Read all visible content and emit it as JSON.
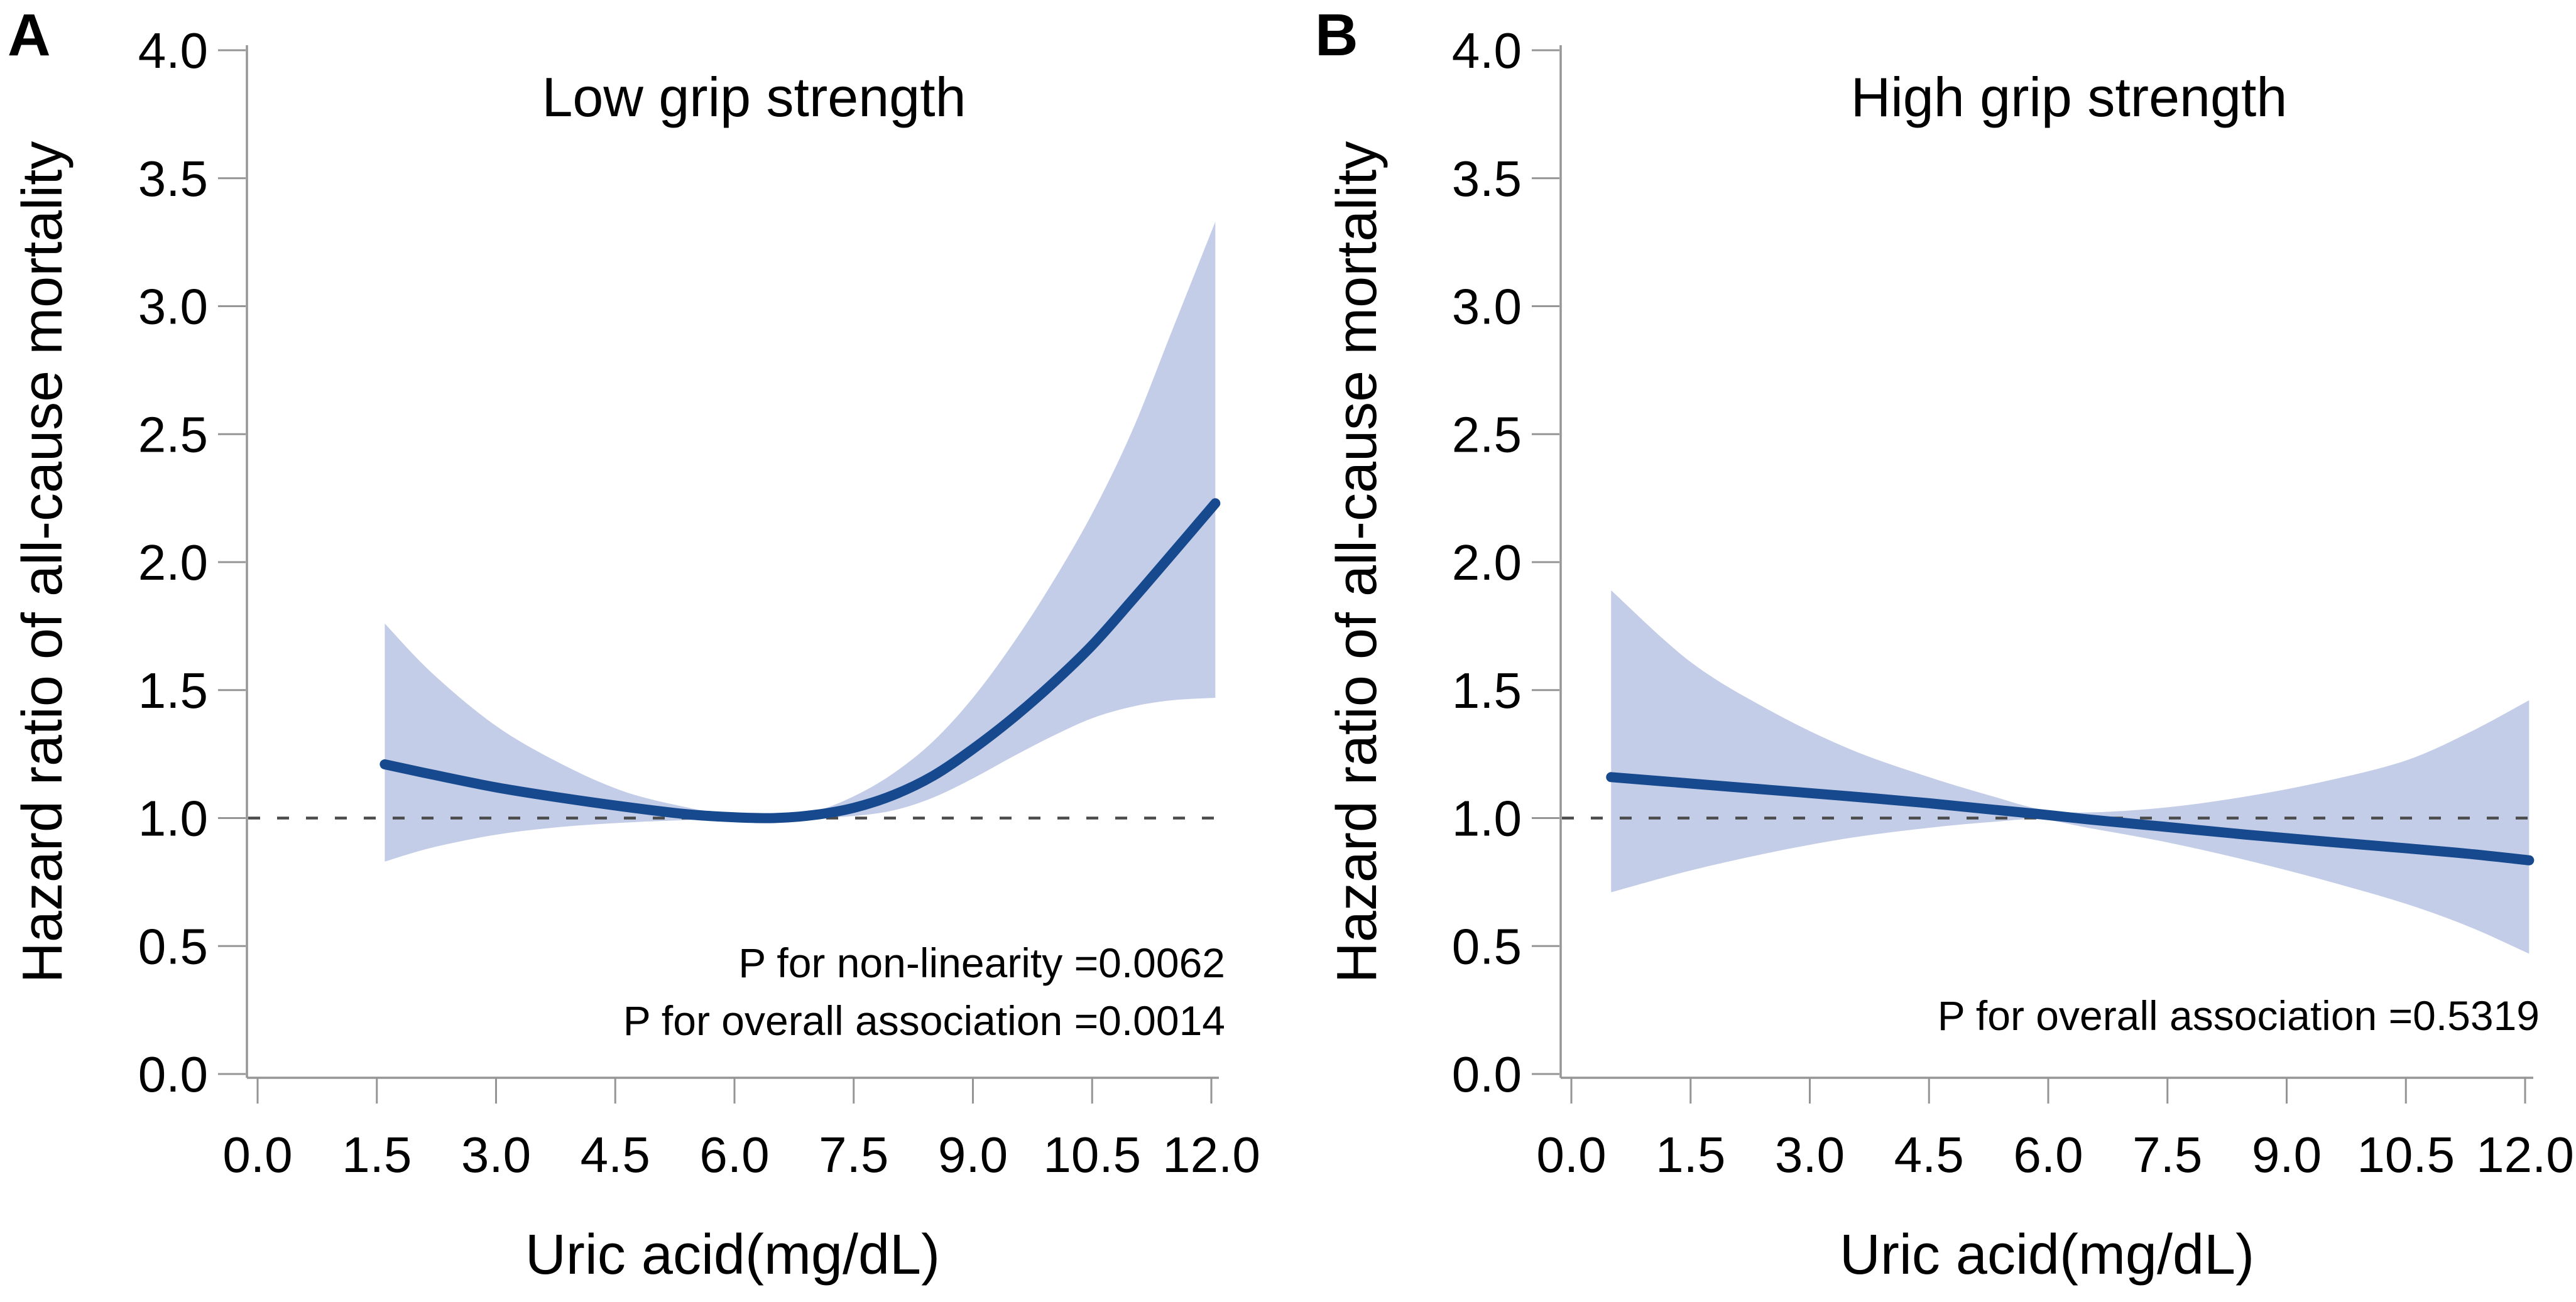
{
  "colors": {
    "curve_line": "#17498f",
    "ci_band": "#c4cde7",
    "reference_line": "#4a4a4a",
    "axis": "#959595",
    "text": "#000000"
  },
  "chart_data": [
    {
      "type": "line",
      "panel_label": "A",
      "title": "Low grip strength",
      "xlabel": "Uric acid(mg/dL)",
      "ylabel": "Hazard ratio of all-cause mortality",
      "xlim": [
        0,
        12.3
      ],
      "ylim": [
        0.0,
        4.0
      ],
      "grid": false,
      "legend": "none",
      "x_tick_labels": [
        "0.0",
        "1.5",
        "3.0",
        "4.5",
        "6.0",
        "7.5",
        "9.0",
        "10.5",
        "12.0"
      ],
      "x_tick_values": [
        0,
        1.5,
        3,
        4.5,
        6,
        7.5,
        9,
        10.5,
        12
      ],
      "y_tick_labels": [
        "0.0",
        "0.5",
        "1.0",
        "1.5",
        "2.0",
        "2.5",
        "3.0",
        "3.5",
        "4.0"
      ],
      "y_tick_values": [
        0,
        0.5,
        1,
        1.5,
        2,
        2.5,
        3,
        3.5,
        4
      ],
      "reference_line_y": 1.0,
      "annotations": [
        "P for non-linearity =0.0062",
        "P for overall association =0.0014"
      ],
      "x": [
        1.6,
        2.2,
        3.0,
        3.8,
        4.6,
        5.4,
        6.0,
        6.5,
        7.0,
        7.5,
        8.0,
        8.5,
        9.0,
        9.5,
        10.0,
        10.5,
        11.0,
        11.5,
        12.05
      ],
      "series": [
        {
          "name": "hazard-ratio",
          "values": [
            1.21,
            1.17,
            1.12,
            1.08,
            1.045,
            1.015,
            1.003,
            1.0,
            1.012,
            1.04,
            1.09,
            1.165,
            1.27,
            1.39,
            1.525,
            1.675,
            1.85,
            2.03,
            2.23
          ]
        },
        {
          "name": "ci-lower",
          "values": [
            0.83,
            0.885,
            0.935,
            0.965,
            0.982,
            0.992,
            0.996,
            0.997,
            1.0,
            1.008,
            1.03,
            1.08,
            1.155,
            1.24,
            1.32,
            1.39,
            1.435,
            1.46,
            1.47
          ]
        },
        {
          "name": "ci-upper",
          "values": [
            1.76,
            1.565,
            1.36,
            1.215,
            1.105,
            1.042,
            1.012,
            1.005,
            1.025,
            1.085,
            1.175,
            1.3,
            1.47,
            1.68,
            1.92,
            2.19,
            2.51,
            2.9,
            3.33
          ]
        }
      ]
    },
    {
      "type": "line",
      "panel_label": "B",
      "title": "High grip strength",
      "xlabel": "Uric acid(mg/dL)",
      "ylabel": "Hazard ratio of all-cause mortality",
      "xlim": [
        0,
        12.3
      ],
      "ylim": [
        0.0,
        4.0
      ],
      "grid": false,
      "legend": "none",
      "x_tick_labels": [
        "0.0",
        "1.5",
        "3.0",
        "4.5",
        "6.0",
        "7.5",
        "9.0",
        "10.5",
        "12.0"
      ],
      "x_tick_values": [
        0,
        1.5,
        3,
        4.5,
        6,
        7.5,
        9,
        10.5,
        12
      ],
      "y_tick_labels": [
        "0.0",
        "0.5",
        "1.0",
        "1.5",
        "2.0",
        "2.5",
        "3.0",
        "3.5",
        "4.0"
      ],
      "y_tick_values": [
        0,
        0.5,
        1,
        1.5,
        2,
        2.5,
        3,
        3.5,
        4
      ],
      "reference_line_y": 1.0,
      "annotations": [
        "P for overall association =0.5319"
      ],
      "x": [
        0.5,
        1.5,
        2.5,
        3.5,
        4.5,
        5.3,
        5.9,
        6.5,
        7.5,
        8.5,
        9.5,
        10.5,
        11.3,
        12.05
      ],
      "series": [
        {
          "name": "hazard-ratio",
          "values": [
            1.16,
            1.135,
            1.11,
            1.085,
            1.058,
            1.033,
            1.015,
            0.995,
            0.965,
            0.935,
            0.908,
            0.882,
            0.86,
            0.835
          ]
        },
        {
          "name": "ci-lower",
          "values": [
            0.71,
            0.795,
            0.865,
            0.922,
            0.962,
            0.985,
            0.995,
            0.962,
            0.905,
            0.835,
            0.755,
            0.665,
            0.575,
            0.47
          ]
        },
        {
          "name": "ci-upper",
          "values": [
            1.89,
            1.61,
            1.42,
            1.27,
            1.16,
            1.085,
            1.035,
            1.022,
            1.042,
            1.085,
            1.145,
            1.225,
            1.335,
            1.46
          ]
        }
      ]
    }
  ]
}
